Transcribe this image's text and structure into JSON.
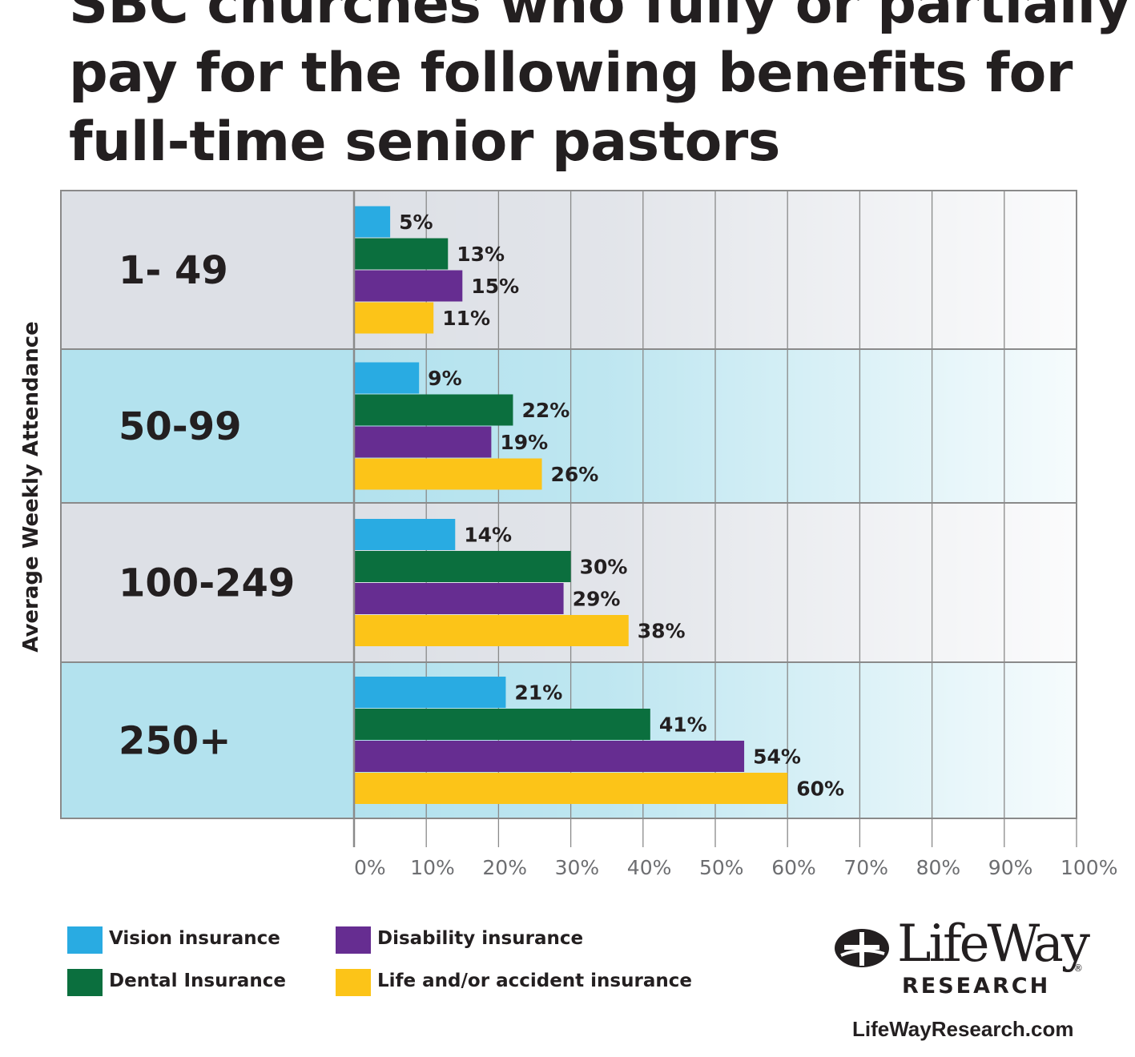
{
  "chart_data": {
    "type": "bar",
    "orientation": "horizontal",
    "title": [
      "SBC churches who fully or partially",
      "pay for the following benefits for",
      "full-time senior pastors"
    ],
    "ylabel": "Average Weekly Attendance",
    "categories": [
      "1- 49",
      "50-99",
      "100-249",
      "250+"
    ],
    "series": [
      {
        "name": "Vision insurance",
        "color": "#29abe2",
        "values": [
          5,
          9,
          14,
          21
        ],
        "labels": [
          "5%",
          "9%",
          "14%",
          "21%"
        ]
      },
      {
        "name": "Dental Insurance",
        "color": "#0b6f3e",
        "values": [
          13,
          22,
          30,
          41
        ],
        "labels": [
          "13%",
          "22%",
          "30%",
          "41%"
        ]
      },
      {
        "name": "Disability insurance",
        "color": "#662d91",
        "values": [
          15,
          19,
          29,
          54
        ],
        "labels": [
          "15%",
          "19%",
          "29%",
          "54%"
        ]
      },
      {
        "name": "Life and/or accident insurance",
        "color": "#fcc418",
        "values": [
          11,
          26,
          38,
          60
        ],
        "labels": [
          "11%",
          "26%",
          "38%",
          "60%"
        ]
      }
    ],
    "xlim": [
      0,
      100
    ],
    "x_ticks": [
      "0%",
      "10%",
      "20%",
      "30%",
      "40%",
      "50%",
      "60%",
      "70%",
      "80%",
      "90%",
      "100%"
    ],
    "grid": true,
    "legend_position": "bottom-left",
    "row_colors": [
      "#dde0e6",
      "#b3e2ee"
    ]
  },
  "logo": {
    "name": "LifeWay",
    "sub": "RESEARCH",
    "url": "LifeWayResearch.com",
    "registered": "®"
  }
}
